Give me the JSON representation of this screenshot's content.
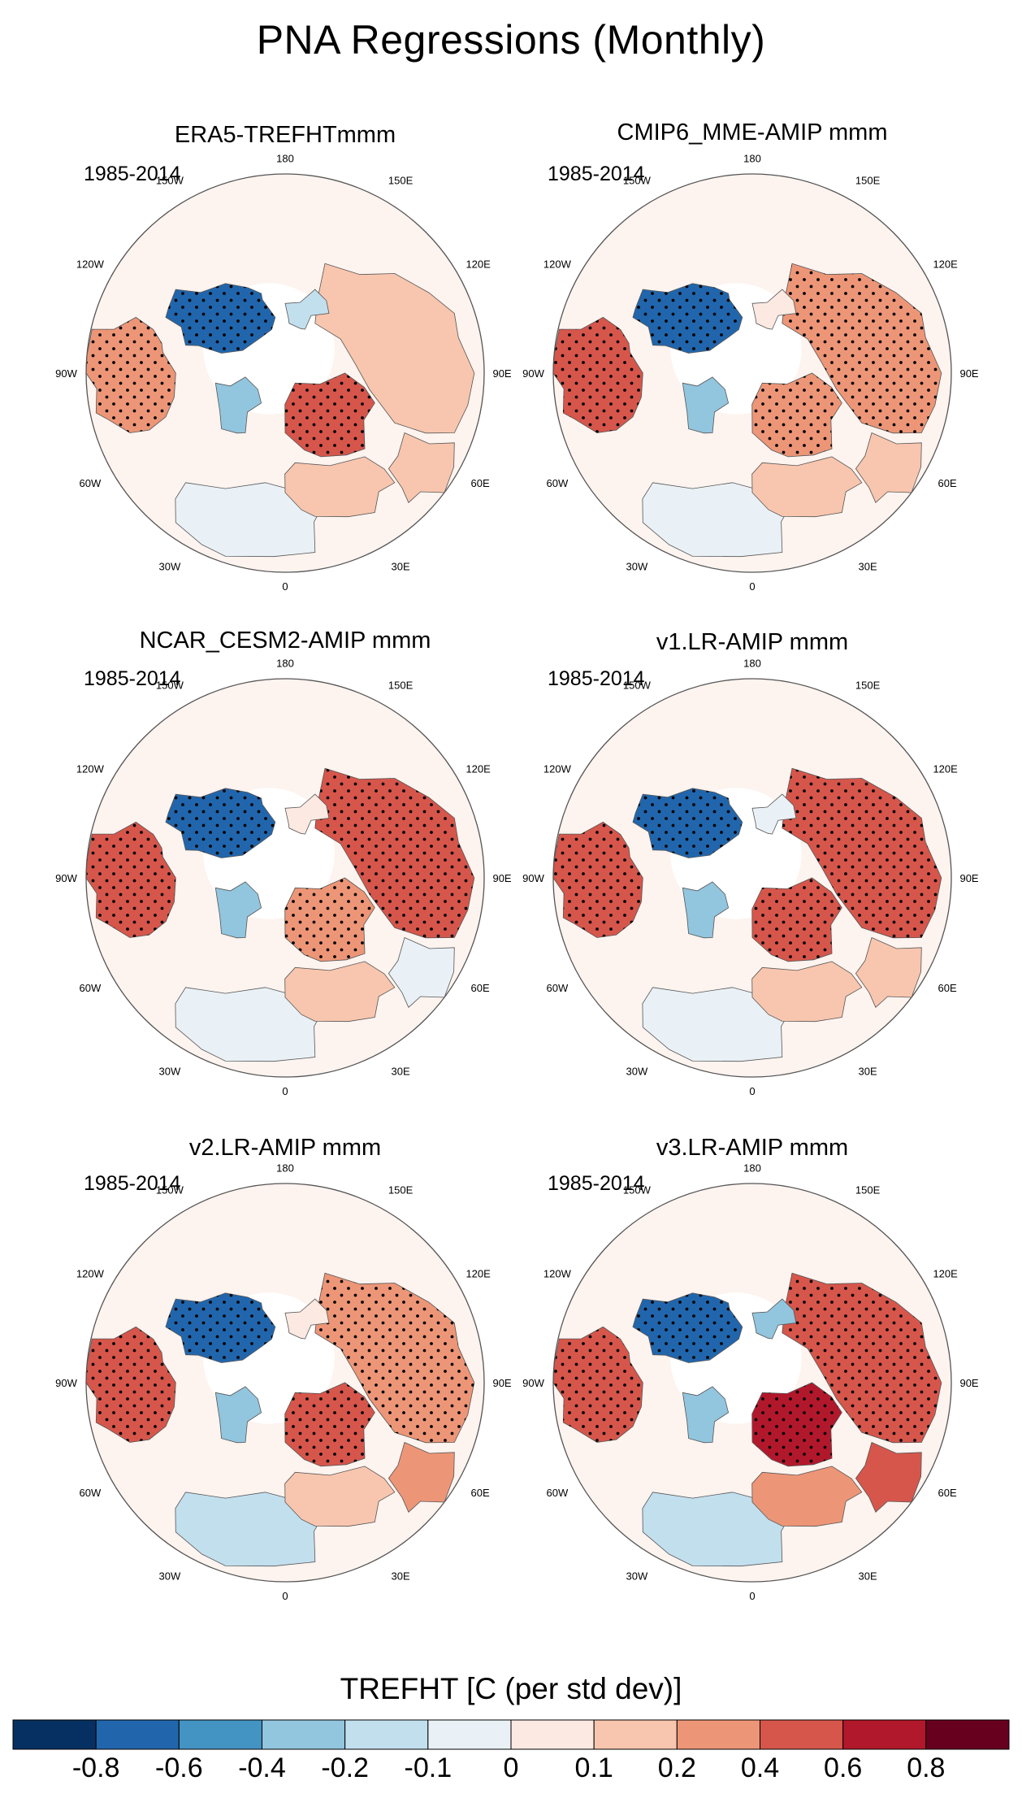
{
  "figure": {
    "title": "PNA Regressions (Monthly)",
    "colorbar_title": "TREFHT [C (per std dev)]"
  },
  "colormap": {
    "colors": [
      "#053061",
      "#2166ac",
      "#4393c3",
      "#92c5de",
      "#c2dfee",
      "#e9f1f6",
      "#fbe9e2",
      "#f8c6ae",
      "#ed9677",
      "#d6564b",
      "#b2182b",
      "#67001f"
    ],
    "tick_labels": [
      "-0.8",
      "-0.6",
      "-0.4",
      "-0.2",
      "-0.1",
      "0",
      "0.1",
      "0.2",
      "0.4",
      "0.6",
      "0.8"
    ],
    "tick_values": [
      -0.8,
      -0.6,
      -0.4,
      -0.2,
      -0.1,
      0,
      0.1,
      0.2,
      0.4,
      0.6,
      0.8
    ]
  },
  "longitude_labels": {
    "180": "180",
    "150W": "150W",
    "150E": "150E",
    "120W": "120W",
    "120E": "120E",
    "90W": "90W",
    "90E": "90E",
    "60W": "60W",
    "60E": "60E",
    "30W": "30W",
    "30E": "30E",
    "0": "0"
  },
  "panels": [
    {
      "title": "ERA5-TREFHTmmm",
      "period": "1985-2014",
      "anomalies": {
        "siberia": -0.8,
        "canada_west": 0.3,
        "greenland": -0.3,
        "scandinavia": 0.5,
        "eurasia": 0.1,
        "atlantic": -0.1,
        "alaska": -0.2,
        "europe_south": 0.1,
        "central_asia": 0.1
      }
    },
    {
      "title": "CMIP6_MME-AMIP  mmm",
      "period": "1985-2014",
      "anomalies": {
        "siberia": -0.7,
        "canada_west": 0.5,
        "greenland": -0.3,
        "scandinavia": 0.2,
        "eurasia": 0.3,
        "atlantic": -0.1,
        "alaska": 0.0,
        "europe_south": 0.1,
        "central_asia": 0.1
      }
    },
    {
      "title": "NCAR_CESM2-AMIP  mmm",
      "period": "1985-2014",
      "anomalies": {
        "siberia": -0.7,
        "canada_west": 0.4,
        "greenland": -0.3,
        "scandinavia": 0.3,
        "eurasia": 0.4,
        "atlantic": -0.1,
        "alaska": 0.0,
        "europe_south": 0.1,
        "central_asia": -0.1
      }
    },
    {
      "title": "v1.LR-AMIP  mmm",
      "period": "1985-2014",
      "anomalies": {
        "siberia": -0.7,
        "canada_west": 0.5,
        "greenland": -0.3,
        "scandinavia": 0.4,
        "eurasia": 0.5,
        "atlantic": -0.1,
        "alaska": -0.1,
        "europe_south": 0.1,
        "central_asia": 0.1
      }
    },
    {
      "title": "v2.LR-AMIP  mmm",
      "period": "1985-2014",
      "anomalies": {
        "siberia": -0.8,
        "canada_west": 0.4,
        "greenland": -0.3,
        "scandinavia": 0.5,
        "eurasia": 0.2,
        "atlantic": -0.2,
        "alaska": 0.0,
        "europe_south": 0.1,
        "central_asia": 0.2
      }
    },
    {
      "title": "v3.LR-AMIP  mmm",
      "period": "1985-2014",
      "anomalies": {
        "siberia": -0.8,
        "canada_west": 0.4,
        "greenland": -0.4,
        "scandinavia": 0.7,
        "eurasia": 0.5,
        "atlantic": -0.2,
        "alaska": -0.3,
        "europe_south": 0.2,
        "central_asia": 0.4
      }
    }
  ]
}
